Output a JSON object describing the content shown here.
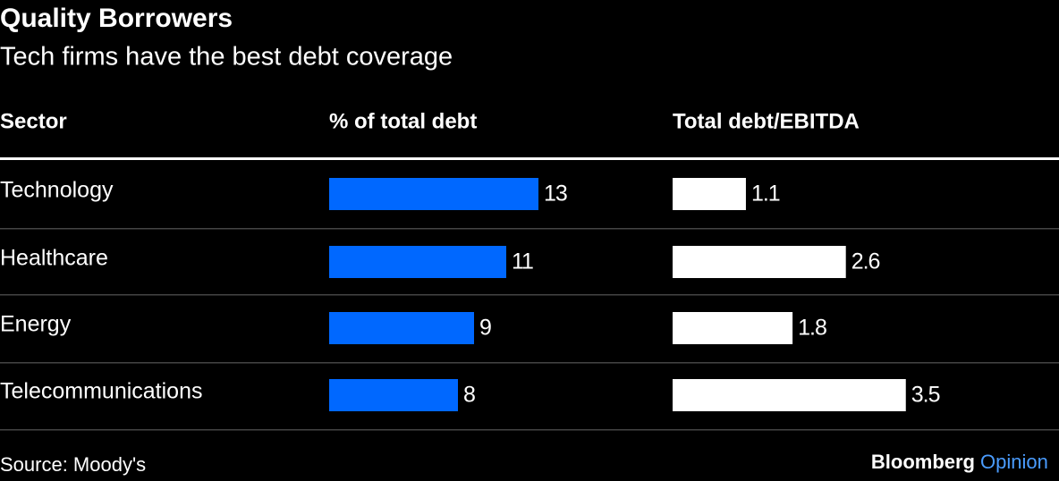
{
  "chart_data": {
    "type": "bar",
    "title": "Quality Borrowers",
    "subtitle": "Tech firms have the best debt coverage",
    "category_header": "Sector",
    "categories": [
      "Technology",
      "Healthcare",
      "Energy",
      "Telecommunications"
    ],
    "series": [
      {
        "name": "% of total debt",
        "color": "#0068ff",
        "values": [
          13,
          11,
          9,
          8
        ]
      },
      {
        "name": "Total debt/EBITDA",
        "color": "#ffffff",
        "values": [
          1.1,
          2.6,
          1.8,
          3.5
        ]
      }
    ],
    "source": "Source: Moody's",
    "brand": "Bloomberg",
    "brand_suffix": "Opinion"
  }
}
